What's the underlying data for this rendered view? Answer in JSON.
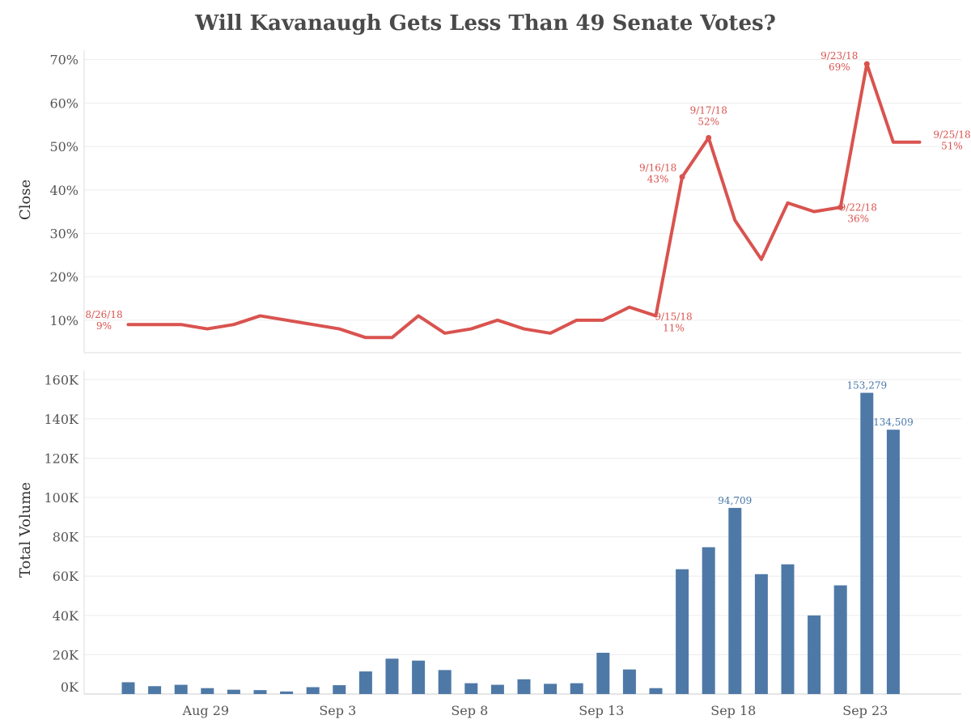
{
  "title": "Will Kavanaugh Gets Less Than 49 Senate Votes?",
  "colors": {
    "line": "#d9534f",
    "bar": "#4e79a7",
    "grid": "#ececec",
    "title": "#4a4a4a"
  },
  "chart_data": [
    {
      "type": "line",
      "ylabel": "Close",
      "ylim": [
        0,
        72
      ],
      "y_ticks": [
        10,
        20,
        30,
        40,
        50,
        60,
        70
      ],
      "y_tick_labels": [
        "10%",
        "20%",
        "30%",
        "40%",
        "50%",
        "60%",
        "70%"
      ],
      "x": [
        "2018-08-26",
        "2018-08-27",
        "2018-08-28",
        "2018-08-29",
        "2018-08-30",
        "2018-08-31",
        "2018-09-01",
        "2018-09-02",
        "2018-09-03",
        "2018-09-04",
        "2018-09-05",
        "2018-09-06",
        "2018-09-07",
        "2018-09-08",
        "2018-09-09",
        "2018-09-10",
        "2018-09-11",
        "2018-09-12",
        "2018-09-13",
        "2018-09-14",
        "2018-09-15",
        "2018-09-16",
        "2018-09-17",
        "2018-09-18",
        "2018-09-19",
        "2018-09-20",
        "2018-09-21",
        "2018-09-22",
        "2018-09-23",
        "2018-09-24",
        "2018-09-25"
      ],
      "series": [
        {
          "values": [
            9,
            9,
            9,
            8,
            9,
            11,
            10,
            9,
            8,
            6,
            6,
            11,
            7,
            8,
            10,
            8,
            7,
            10,
            10,
            13,
            11,
            43,
            52,
            33,
            24,
            37,
            35,
            36,
            69,
            51,
            51
          ]
        }
      ],
      "annotations": [
        {
          "date_label": "8/26/18",
          "value_label": "9%",
          "index": 0
        },
        {
          "date_label": "9/15/18",
          "value_label": "11%",
          "index": 20
        },
        {
          "date_label": "9/16/18",
          "value_label": "43%",
          "index": 21
        },
        {
          "date_label": "9/17/18",
          "value_label": "52%",
          "index": 22
        },
        {
          "date_label": "9/22/18",
          "value_label": "36%",
          "index": 27
        },
        {
          "date_label": "9/23/18",
          "value_label": "69%",
          "index": 28
        },
        {
          "date_label": "9/25/18",
          "value_label": "51%",
          "index": 30
        }
      ],
      "grid": true
    },
    {
      "type": "bar",
      "ylabel": "Total Volume",
      "ylim": [
        0,
        165000
      ],
      "y_ticks": [
        0,
        20000,
        40000,
        60000,
        80000,
        100000,
        120000,
        140000,
        160000
      ],
      "y_tick_labels": [
        "0K",
        "20K",
        "40K",
        "60K",
        "80K",
        "100K",
        "120K",
        "140K",
        "160K"
      ],
      "x": [
        "2018-08-26",
        "2018-08-27",
        "2018-08-28",
        "2018-08-29",
        "2018-08-30",
        "2018-08-31",
        "2018-09-01",
        "2018-09-02",
        "2018-09-03",
        "2018-09-04",
        "2018-09-05",
        "2018-09-06",
        "2018-09-07",
        "2018-09-08",
        "2018-09-09",
        "2018-09-10",
        "2018-09-11",
        "2018-09-12",
        "2018-09-13",
        "2018-09-14",
        "2018-09-15",
        "2018-09-16",
        "2018-09-17",
        "2018-09-18",
        "2018-09-19",
        "2018-09-20",
        "2018-09-21",
        "2018-09-22",
        "2018-09-23",
        "2018-09-24"
      ],
      "series": [
        {
          "values": [
            6000,
            4000,
            4700,
            3000,
            2200,
            2000,
            1300,
            3500,
            4500,
            11500,
            18000,
            17000,
            12200,
            5500,
            4700,
            7500,
            5200,
            5500,
            21000,
            12500,
            3000,
            63500,
            74700,
            94709,
            61000,
            66000,
            40000,
            55300,
            153279,
            134509
          ]
        }
      ],
      "annotations": [
        {
          "label": "94,709",
          "index": 23
        },
        {
          "label": "153,279",
          "index": 28
        },
        {
          "label": "134,509",
          "index": 29
        }
      ],
      "grid": true
    }
  ],
  "x_axis": {
    "tick_labels": [
      "Aug 29",
      "Sep 3",
      "Sep 8",
      "Sep 13",
      "Sep 18",
      "Sep 23"
    ],
    "tick_indices": [
      3,
      8,
      13,
      18,
      23,
      28
    ]
  }
}
